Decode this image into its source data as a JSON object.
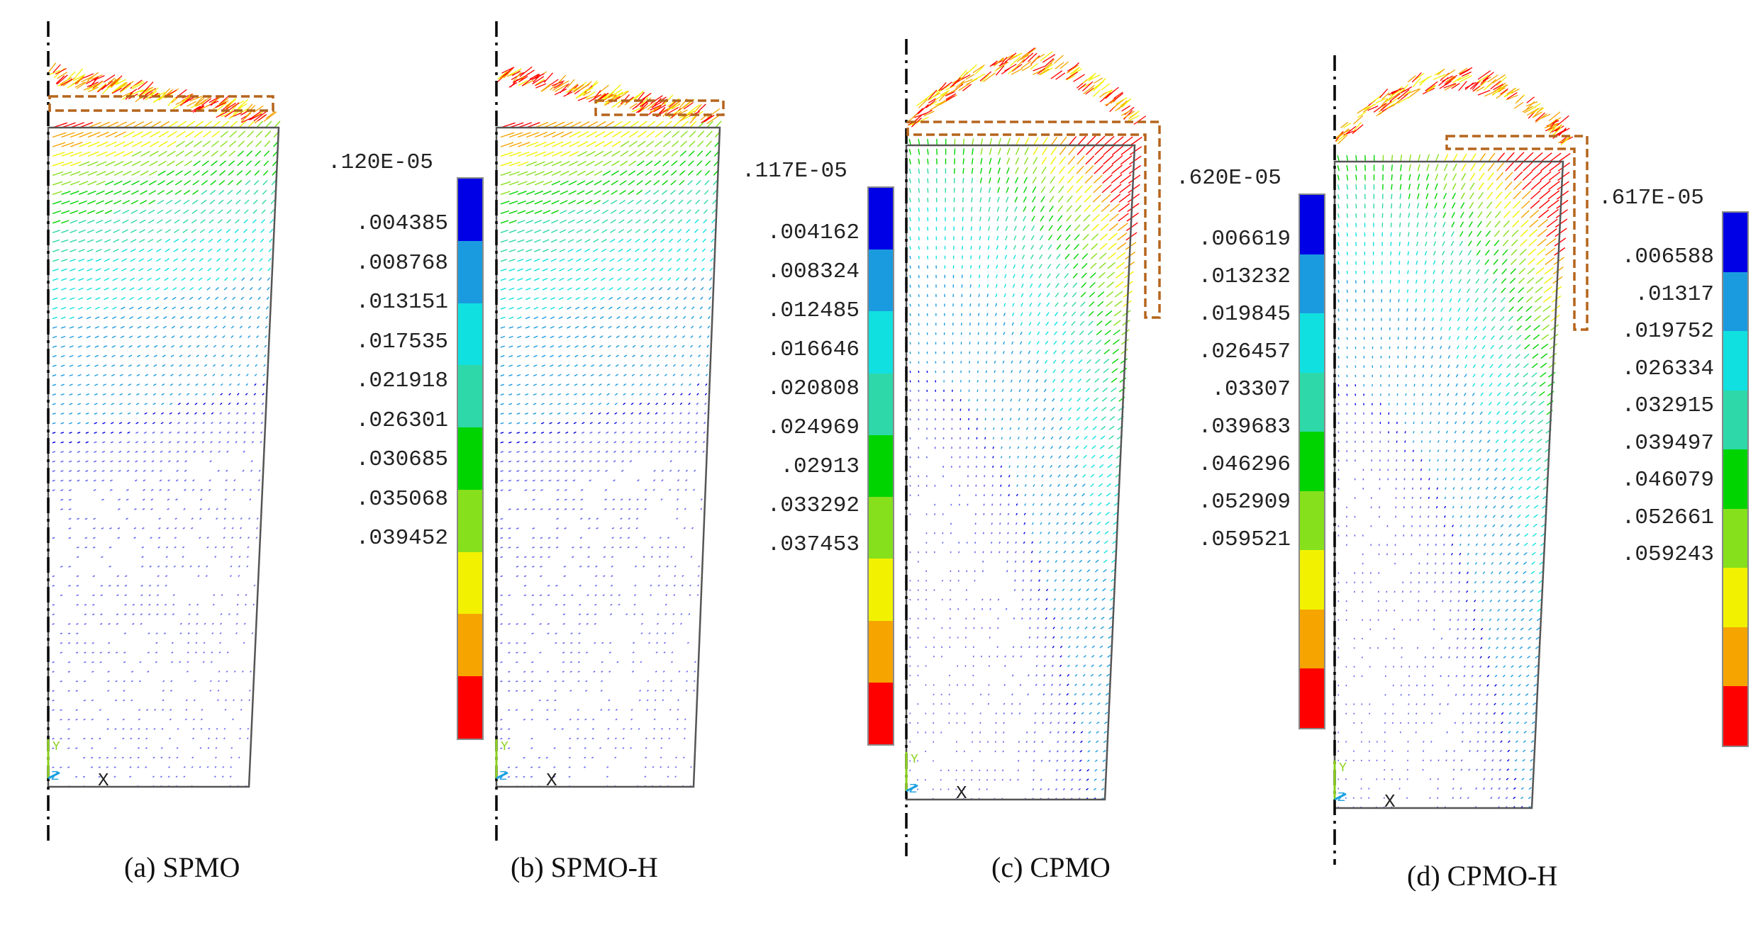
{
  "figure": {
    "panels": [
      {
        "id": "a",
        "caption": "(a) SPMO",
        "legend_top": ".120E-05",
        "legend_values": [
          ".004385",
          ".008768",
          ".013151",
          ".017535",
          ".021918",
          ".026301",
          ".030685",
          ".035068",
          ".039452"
        ],
        "axis_x": "X",
        "axis_y": "Y",
        "axis_z": "Z"
      },
      {
        "id": "b",
        "caption": "(b) SPMO-H",
        "legend_top": ".117E-05",
        "legend_values": [
          ".004162",
          ".008324",
          ".012485",
          ".016646",
          ".020808",
          ".024969",
          ".02913",
          ".033292",
          ".037453"
        ],
        "axis_x": "X",
        "axis_y": "Y",
        "axis_z": "Z"
      },
      {
        "id": "c",
        "caption": "(c) CPMO",
        "legend_top": ".620E-05",
        "legend_values": [
          ".006619",
          ".013232",
          ".019845",
          ".026457",
          ".03307",
          ".039683",
          ".046296",
          ".052909",
          ".059521"
        ],
        "axis_x": "X",
        "axis_y": "Y",
        "axis_z": "Z"
      },
      {
        "id": "d",
        "caption": "(d) CPMO-H",
        "legend_top": ".617E-05",
        "legend_values": [
          ".006588",
          ".01317",
          ".019752",
          ".026334",
          ".032915",
          ".039497",
          ".046079",
          ".052661",
          ".059243"
        ],
        "axis_x": "X",
        "axis_y": "Y",
        "axis_z": "Z"
      }
    ],
    "colorbar_colors": [
      "#0000e6",
      "#1a9be0",
      "#10e0e0",
      "#2ed8a8",
      "#00d400",
      "#86e01c",
      "#f2f200",
      "#f5a400",
      "#ff0000"
    ],
    "outline_color": "#555555",
    "symmetry_axis_color": "#000000",
    "coil_color": "#b5651d",
    "arrow_color_low": "#6a6af0"
  }
}
